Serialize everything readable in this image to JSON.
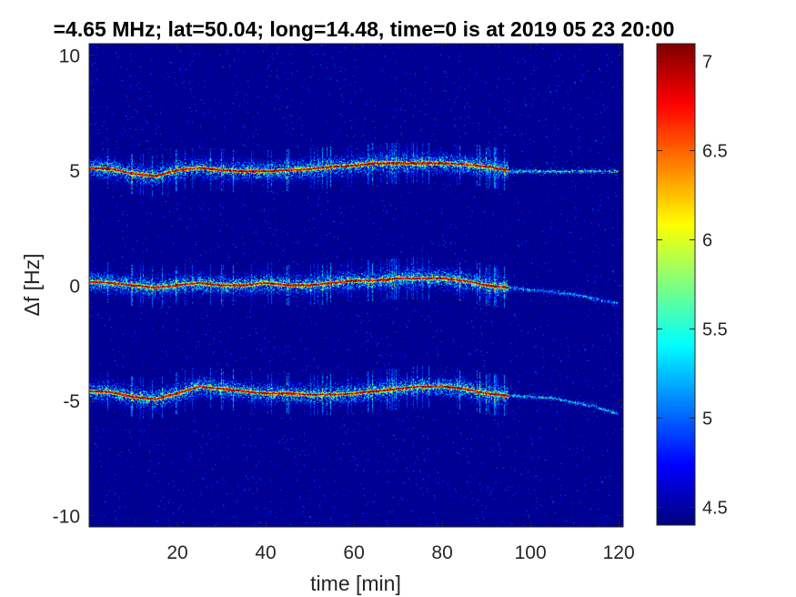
{
  "chart_data": {
    "type": "heatmap",
    "title": "=4.65 MHz;  lat=50.04; long=14.48, time=0 is at 2019 05 23 20:00",
    "xlabel": "time [min]",
    "ylabel": "Δf [Hz]",
    "xlim": [
      0,
      121
    ],
    "ylim": [
      -10.5,
      10.5
    ],
    "x_ticks": [
      "20",
      "40",
      "60",
      "80",
      "100",
      "120"
    ],
    "y_ticks": [
      "-10",
      "-5",
      "0",
      "5",
      "10"
    ],
    "colorbar": {
      "colormap": "jet",
      "range": [
        4.4,
        7.1
      ],
      "ticks": [
        "4.5",
        "5",
        "5.5",
        "6",
        "6.5",
        "7"
      ]
    },
    "background_level": 4.45,
    "traces": [
      {
        "description": "upper line",
        "t": [
          0,
          5,
          10,
          15,
          20,
          25,
          30,
          35,
          40,
          45,
          50,
          55,
          60,
          65,
          70,
          75,
          80,
          85,
          90,
          95
        ],
        "f": [
          5.1,
          5.05,
          4.85,
          4.75,
          5.0,
          5.1,
          5.0,
          4.95,
          4.95,
          5.0,
          5.05,
          5.15,
          5.2,
          5.3,
          5.3,
          5.3,
          5.3,
          5.25,
          5.15,
          5.0
        ],
        "peak": 7.0
      },
      {
        "description": "middle line",
        "t": [
          0,
          5,
          10,
          15,
          20,
          25,
          30,
          35,
          40,
          45,
          50,
          55,
          60,
          65,
          70,
          75,
          80,
          85,
          90,
          95
        ],
        "f": [
          0.15,
          0.1,
          0.0,
          -0.1,
          0.0,
          0.1,
          0.0,
          0.0,
          0.1,
          0.0,
          0.0,
          0.1,
          0.2,
          0.2,
          0.3,
          0.3,
          0.3,
          0.2,
          0.0,
          -0.1
        ],
        "peak": 7.0
      },
      {
        "description": "lower line",
        "t": [
          0,
          5,
          10,
          15,
          20,
          25,
          30,
          35,
          40,
          45,
          50,
          55,
          60,
          65,
          70,
          75,
          80,
          85,
          90,
          95
        ],
        "f": [
          -4.6,
          -4.65,
          -4.85,
          -4.95,
          -4.7,
          -4.4,
          -4.5,
          -4.6,
          -4.7,
          -4.7,
          -4.75,
          -4.75,
          -4.7,
          -4.6,
          -4.5,
          -4.4,
          -4.4,
          -4.5,
          -4.7,
          -4.8
        ],
        "peak": 7.0
      },
      {
        "description": "faint continuation, upper",
        "t": [
          95,
          100,
          105,
          110,
          115,
          120
        ],
        "f": [
          4.95,
          4.95,
          4.95,
          4.95,
          4.95,
          4.95
        ],
        "peak": 5.6
      },
      {
        "description": "faint continuation, middle",
        "t": [
          95,
          100,
          105,
          110,
          115,
          120
        ],
        "f": [
          -0.1,
          -0.2,
          -0.3,
          -0.4,
          -0.6,
          -0.8
        ],
        "peak": 5.3
      },
      {
        "description": "faint continuation, lower",
        "t": [
          95,
          100,
          105,
          110,
          115,
          120
        ],
        "f": [
          -4.8,
          -4.85,
          -4.9,
          -5.1,
          -5.3,
          -5.6
        ],
        "peak": 5.4
      }
    ]
  }
}
